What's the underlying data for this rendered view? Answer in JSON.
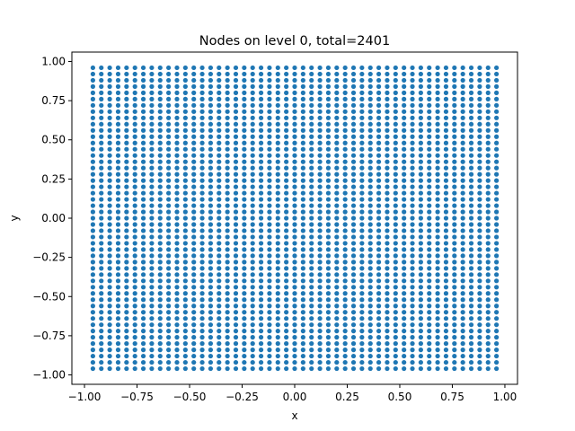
{
  "chart_data": {
    "type": "scatter",
    "title": "Nodes on level 0, total=2401",
    "xlabel": "x",
    "ylabel": "y",
    "xlim": [
      -1.06,
      1.06
    ],
    "ylim": [
      -1.06,
      1.06
    ],
    "grid": false,
    "series": [
      {
        "grid_points": {
          "x": {
            "start": -0.96,
            "stop": 0.96,
            "count": 49
          },
          "y": {
            "start": -0.96,
            "stop": 0.96,
            "count": 49
          }
        },
        "color": "#1f77b4"
      }
    ],
    "xticks": [
      -1.0,
      -0.75,
      -0.5,
      -0.25,
      0.0,
      0.25,
      0.5,
      0.75,
      1.0
    ],
    "xtick_labels": [
      "−1.00",
      "−0.75",
      "−0.50",
      "−0.25",
      "0.00",
      "0.25",
      "0.50",
      "0.75",
      "1.00"
    ],
    "yticks": [
      -1.0,
      -0.75,
      -0.5,
      -0.25,
      0.0,
      0.25,
      0.5,
      0.75,
      1.0
    ],
    "ytick_labels": [
      "−1.00",
      "−0.75",
      "−0.50",
      "−0.25",
      "0.00",
      "0.25",
      "0.50",
      "0.75",
      "1.00"
    ]
  }
}
